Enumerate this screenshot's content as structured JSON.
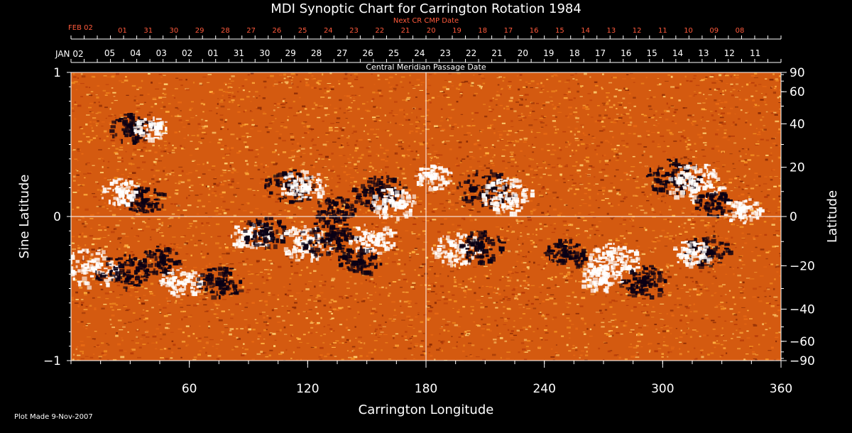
{
  "chart_data": {
    "type": "heatmap",
    "title": "MDI Synoptic Chart for Carrington Rotation 1984",
    "xlabel": "Carrington Longitude",
    "ylabel_left": "Sine Latitude",
    "ylabel_right": "Latitude",
    "top_label_red": "Next CR CMP Date",
    "top_label_white": "Central Meridian Passage Date",
    "footer": "Plot Made  9-Nov-2007",
    "xlim": [
      0,
      360
    ],
    "ylim": [
      -1,
      1
    ],
    "x_ticks": [
      60,
      120,
      180,
      240,
      300,
      360
    ],
    "y_ticks_left": [
      {
        "v": 1,
        "label": "1"
      },
      {
        "v": 0,
        "label": "0"
      },
      {
        "v": -1,
        "label": "−1"
      }
    ],
    "y_ticks_right": [
      90,
      60,
      40,
      20,
      0,
      -20,
      -40,
      -60,
      -90
    ],
    "red_date_start": "FEB 02",
    "red_dates": [
      "01",
      "31",
      "30",
      "29",
      "28",
      "27",
      "26",
      "25",
      "24",
      "23",
      "22",
      "21",
      "20",
      "19",
      "18",
      "17",
      "16",
      "15",
      "14",
      "13",
      "12",
      "11",
      "10",
      "09",
      "08"
    ],
    "white_date_start": "JAN 02",
    "white_dates": [
      "05",
      "04",
      "03",
      "02",
      "01",
      "31",
      "30",
      "29",
      "28",
      "27",
      "26",
      "25",
      "24",
      "23",
      "22",
      "21",
      "20",
      "19",
      "18",
      "17",
      "16",
      "15",
      "14",
      "13",
      "12",
      "11"
    ],
    "reference_lines": {
      "longitude": 180,
      "sine_latitude": 0
    },
    "colors": {
      "background": "#d45a10",
      "positive_field": "#ffffff",
      "negative_field": "#0a0014",
      "frame": "#ffffff",
      "next_date_text": "#ff5a3c"
    },
    "magnetic_regions": [
      {
        "polarity": "negative",
        "lon": 30,
        "sinlat": 0.62,
        "strength": 0.6
      },
      {
        "polarity": "positive",
        "lon": 40,
        "sinlat": 0.62,
        "strength": 0.4
      },
      {
        "polarity": "negative",
        "lon": 37,
        "sinlat": 0.12,
        "strength": 0.6
      },
      {
        "polarity": "positive",
        "lon": 24,
        "sinlat": 0.18,
        "strength": 0.5
      },
      {
        "polarity": "negative",
        "lon": 110,
        "sinlat": 0.22,
        "strength": 0.8
      },
      {
        "polarity": "positive",
        "lon": 117,
        "sinlat": 0.22,
        "strength": 0.7
      },
      {
        "polarity": "negative",
        "lon": 155,
        "sinlat": 0.18,
        "strength": 0.9
      },
      {
        "polarity": "positive",
        "lon": 163,
        "sinlat": 0.1,
        "strength": 0.7
      },
      {
        "polarity": "negative",
        "lon": 133,
        "sinlat": 0.05,
        "strength": 0.6
      },
      {
        "polarity": "positive",
        "lon": 183,
        "sinlat": 0.28,
        "strength": 0.5
      },
      {
        "polarity": "negative",
        "lon": 210,
        "sinlat": 0.2,
        "strength": 1.0
      },
      {
        "polarity": "positive",
        "lon": 220,
        "sinlat": 0.15,
        "strength": 0.9
      },
      {
        "polarity": "negative",
        "lon": 305,
        "sinlat": 0.28,
        "strength": 0.9
      },
      {
        "polarity": "positive",
        "lon": 316,
        "sinlat": 0.24,
        "strength": 1.0
      },
      {
        "polarity": "negative",
        "lon": 325,
        "sinlat": 0.1,
        "strength": 0.5
      },
      {
        "polarity": "positive",
        "lon": 340,
        "sinlat": 0.05,
        "strength": 0.5
      },
      {
        "polarity": "positive",
        "lon": 10,
        "sinlat": -0.35,
        "strength": 1.0
      },
      {
        "polarity": "negative",
        "lon": 25,
        "sinlat": -0.38,
        "strength": 0.9
      },
      {
        "polarity": "negative",
        "lon": 45,
        "sinlat": -0.3,
        "strength": 0.6
      },
      {
        "polarity": "positive",
        "lon": 55,
        "sinlat": -0.45,
        "strength": 0.6
      },
      {
        "polarity": "positive",
        "lon": 90,
        "sinlat": -0.12,
        "strength": 0.6
      },
      {
        "polarity": "negative",
        "lon": 98,
        "sinlat": -0.1,
        "strength": 0.7
      },
      {
        "polarity": "negative",
        "lon": 75,
        "sinlat": -0.45,
        "strength": 0.7
      },
      {
        "polarity": "positive",
        "lon": 118,
        "sinlat": -0.18,
        "strength": 0.9
      },
      {
        "polarity": "negative",
        "lon": 130,
        "sinlat": -0.15,
        "strength": 1.0
      },
      {
        "polarity": "positive",
        "lon": 152,
        "sinlat": -0.15,
        "strength": 0.7
      },
      {
        "polarity": "negative",
        "lon": 146,
        "sinlat": -0.3,
        "strength": 0.6
      },
      {
        "polarity": "positive",
        "lon": 195,
        "sinlat": -0.22,
        "strength": 0.8
      },
      {
        "polarity": "negative",
        "lon": 207,
        "sinlat": -0.2,
        "strength": 0.7
      },
      {
        "polarity": "negative",
        "lon": 250,
        "sinlat": -0.25,
        "strength": 0.6
      },
      {
        "polarity": "positive",
        "lon": 275,
        "sinlat": -0.3,
        "strength": 0.9
      },
      {
        "polarity": "negative",
        "lon": 290,
        "sinlat": -0.45,
        "strength": 0.8
      },
      {
        "polarity": "positive",
        "lon": 268,
        "sinlat": -0.42,
        "strength": 0.6
      },
      {
        "polarity": "negative",
        "lon": 322,
        "sinlat": -0.23,
        "strength": 0.7
      },
      {
        "polarity": "positive",
        "lon": 314,
        "sinlat": -0.25,
        "strength": 0.5
      }
    ]
  }
}
